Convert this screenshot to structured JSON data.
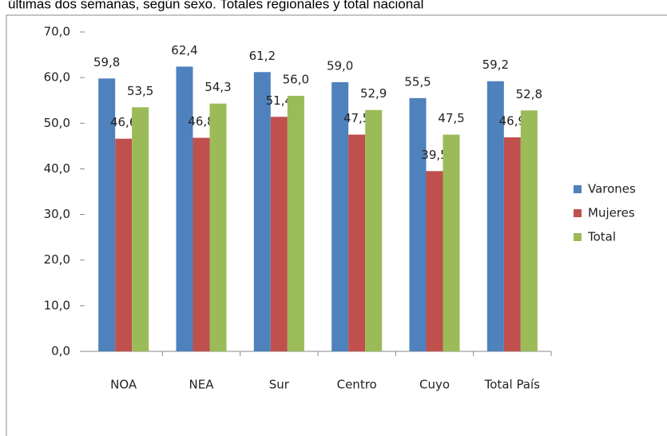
{
  "chart_data": {
    "type": "bar",
    "title": "últimas dos semanas, según sexo. Totales regionales y total nacional",
    "categories": [
      "NOA",
      "NEA",
      "Sur",
      "Centro",
      "Cuyo",
      "Total País"
    ],
    "series": [
      {
        "name": "Varones",
        "color": "#4f81bd",
        "values": [
          59.8,
          62.4,
          61.2,
          59.0,
          55.5,
          59.2
        ],
        "value_labels": [
          "59,8",
          "62,4",
          "61,2",
          "59,0",
          "55,5",
          "59,2"
        ]
      },
      {
        "name": "Mujeres",
        "color": "#c0504d",
        "values": [
          46.6,
          46.8,
          51.4,
          47.5,
          39.5,
          46.9
        ],
        "value_labels": [
          "46,6",
          "46,8",
          "51,4",
          "47,5",
          "39,5",
          "46,9"
        ]
      },
      {
        "name": "Total",
        "color": "#9bbb59",
        "values": [
          53.5,
          54.3,
          56.0,
          52.9,
          47.5,
          52.8
        ],
        "value_labels": [
          "53,5",
          "54,3",
          "56,0",
          "52,9",
          "47,5",
          "52,8"
        ]
      }
    ],
    "ylim": [
      0,
      70
    ],
    "yticks": [
      {
        "value": 0,
        "label": "0,0"
      },
      {
        "value": 10,
        "label": "10,0"
      },
      {
        "value": 20,
        "label": "20,0"
      },
      {
        "value": 30,
        "label": "30,0"
      },
      {
        "value": 40,
        "label": "40,0"
      },
      {
        "value": 50,
        "label": "50,0"
      },
      {
        "value": 60,
        "label": "60,0"
      },
      {
        "value": 70,
        "label": "70,0"
      }
    ],
    "legend": "right"
  }
}
